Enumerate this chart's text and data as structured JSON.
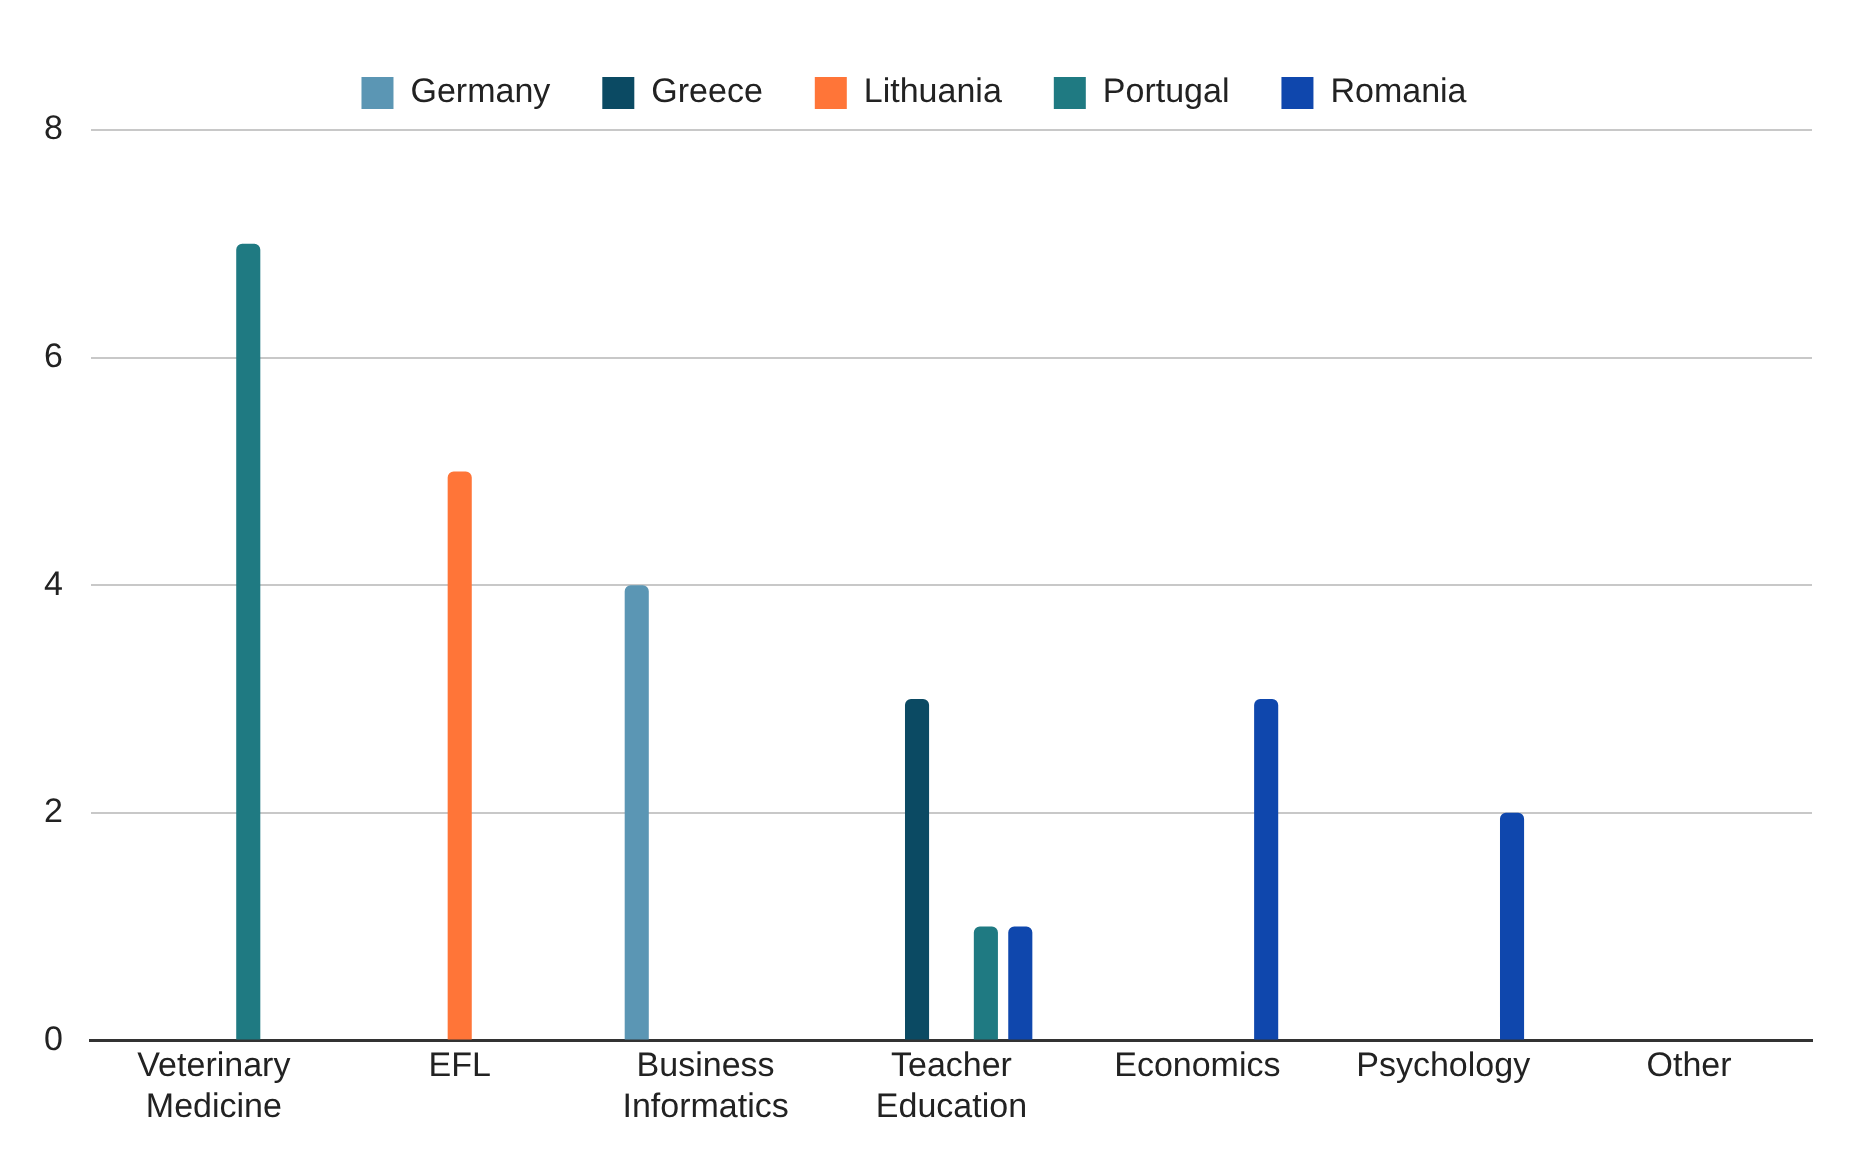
{
  "chart_data": {
    "type": "bar",
    "categories": [
      "Veterinary Medicine",
      "EFL",
      "Business Informatics",
      "Teacher Education",
      "Economics",
      "Psychology",
      "Other"
    ],
    "series": [
      {
        "name": "Germany",
        "color": "#5b96b4",
        "values": [
          null,
          null,
          4,
          null,
          null,
          null,
          null
        ]
      },
      {
        "name": "Greece",
        "color": "#0b4a63",
        "values": [
          null,
          null,
          null,
          3,
          null,
          null,
          null
        ]
      },
      {
        "name": "Lithuania",
        "color": "#ff7538",
        "values": [
          null,
          5,
          null,
          null,
          null,
          null,
          null
        ]
      },
      {
        "name": "Portugal",
        "color": "#1f7a82",
        "values": [
          7,
          null,
          null,
          1,
          null,
          null,
          null
        ]
      },
      {
        "name": "Romania",
        "color": "#0f47ad",
        "values": [
          null,
          null,
          null,
          1,
          3,
          2,
          null
        ]
      }
    ],
    "ylim": [
      0,
      8
    ],
    "yticks": [
      0,
      2,
      4,
      6,
      8
    ],
    "grid": "y",
    "legend": "top"
  }
}
